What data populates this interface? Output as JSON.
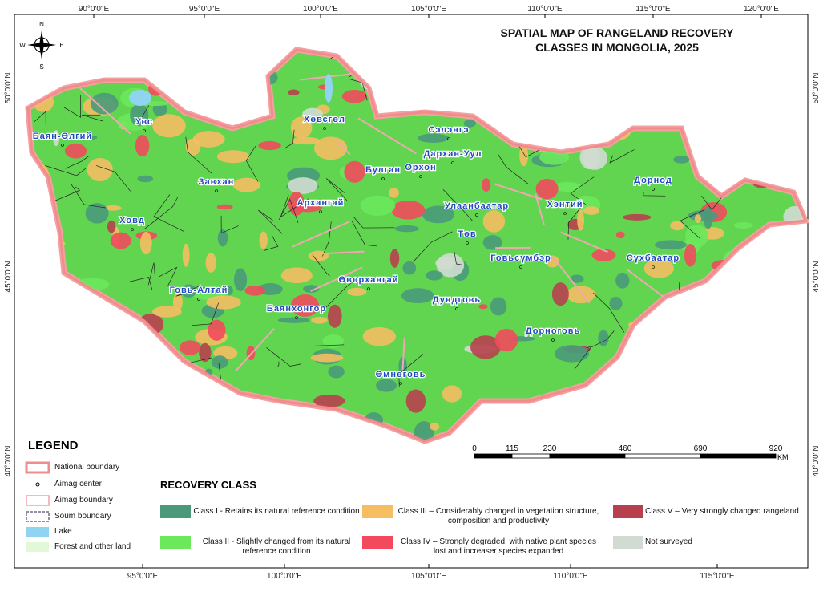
{
  "title": "SPATIAL MAP OF RANGELAND RECOVERY CLASSES IN MONGOLIA, 2025",
  "compass": {
    "north": "N",
    "south": "S",
    "east": "E",
    "west": "W"
  },
  "graticule": {
    "top": [
      "90°0'0\"E",
      "95°0'0\"E",
      "100°0'0\"E",
      "105°0'0\"E",
      "110°0'0\"E",
      "115°0'0\"E",
      "120°0'0\"E"
    ],
    "bottom": [
      "95°0'0\"E",
      "100°0'0\"E",
      "105°0'0\"E",
      "110°0'0\"E",
      "115°0'0\"E"
    ],
    "left": [
      "50°0'0\"N",
      "45°0'0\"N",
      "40°0'0\"N"
    ],
    "right": [
      "50°0'0\"N",
      "45°0'0\"N",
      "40°0'0\"N"
    ]
  },
  "aimags": [
    "Баян-Өлгий",
    "Увс",
    "Ховд",
    "Завхан",
    "Хөвсгөл",
    "Архангай",
    "Булган",
    "Сэлэнгэ",
    "Дархан-Уул",
    "Орхон",
    "Улаанбаатар",
    "Төв",
    "Хэнтий",
    "Дорнод",
    "Сүхбаатар",
    "Говьсүмбэр",
    "Дундговь",
    "Өвөрхангай",
    "Баянхонгор",
    "Говь-Алтай",
    "Дорноговь",
    "Өмнөговь"
  ],
  "scale": {
    "ticks": [
      0,
      115,
      230,
      460,
      690,
      920
    ],
    "unit": "KM"
  },
  "legend": {
    "title": "LEGEND",
    "items": [
      "National boundary",
      "Aimag center",
      "Aimag boundary",
      "Soum boundary",
      "Lake",
      "Forest and other land"
    ]
  },
  "recovery_class": {
    "title": "RECOVERY CLASS",
    "classes": [
      {
        "label": "Class I - Retains its natural reference condition",
        "color": "#4a9a7a"
      },
      {
        "label": "Class II - Slightly changed from its natural reference condition",
        "color": "#6be85c"
      },
      {
        "label": "Class III – Considerably changed in vegetation structure, composition and productivity",
        "color": "#f5be62"
      },
      {
        "label": "Class IV – Strongly degraded, with native plant species lost and increaser species expanded",
        "color": "#f24a5c"
      },
      {
        "label": "Class V – Very strongly changed rangeland",
        "color": "#b8404e"
      },
      {
        "label": "Not surveyed",
        "color": "#d2dbd2"
      }
    ]
  }
}
